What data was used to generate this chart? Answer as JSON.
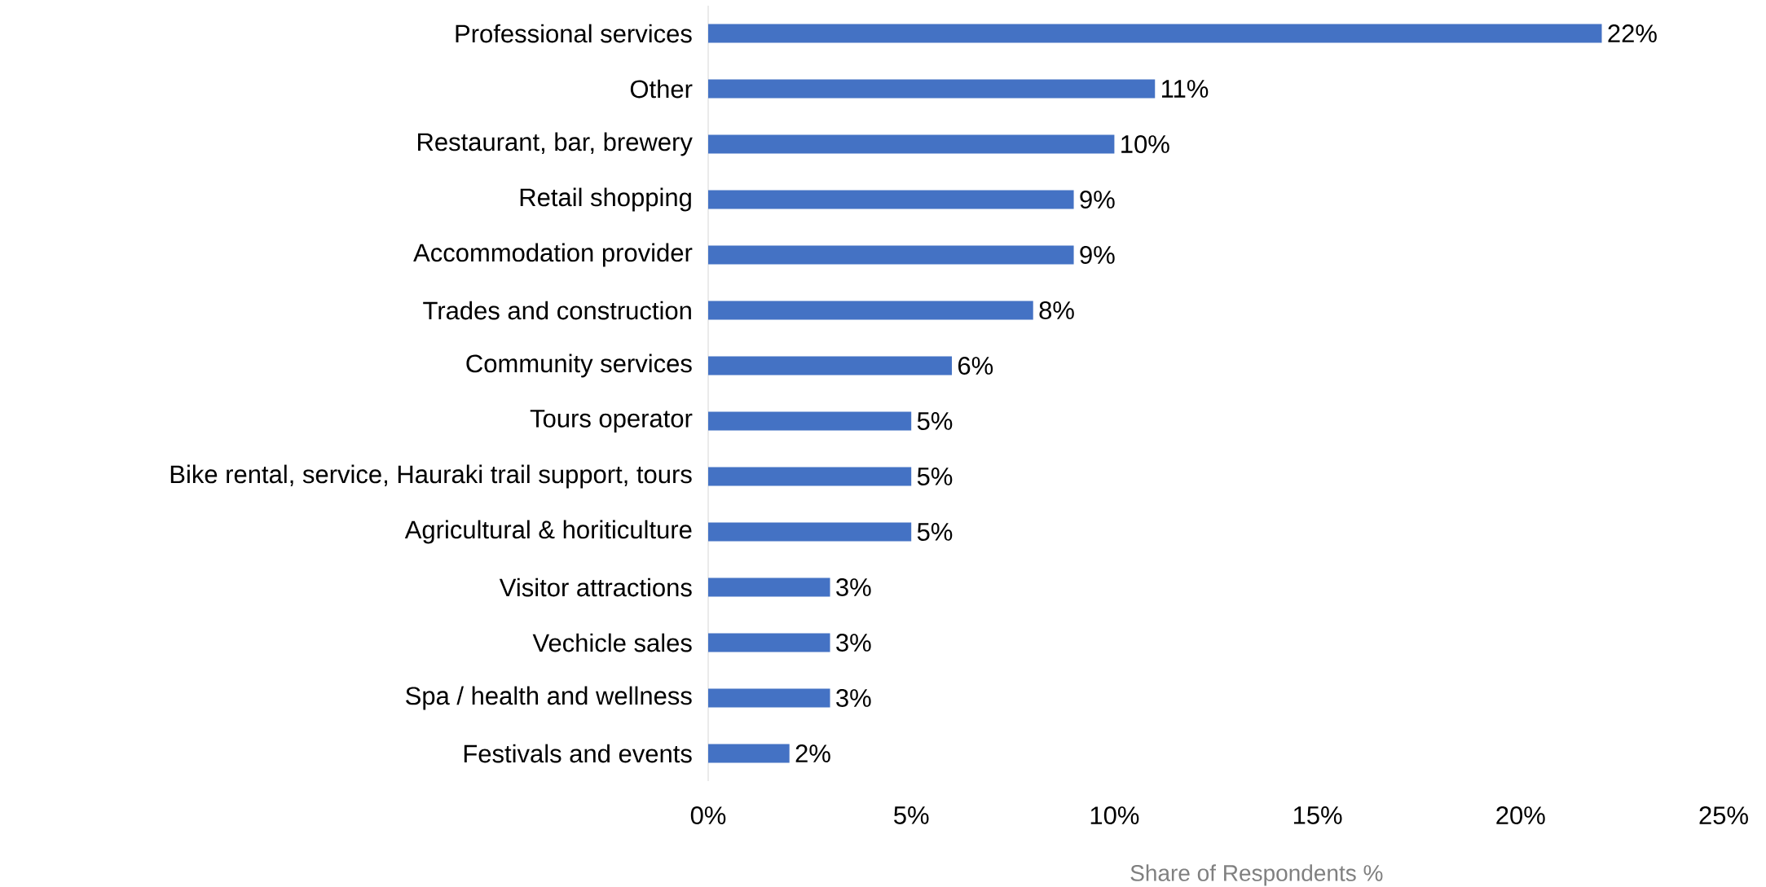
{
  "chart_data": {
    "type": "bar",
    "orientation": "horizontal",
    "xlabel": "Share of Respondents %",
    "categories": [
      "Professional services",
      "Other",
      "Restaurant, bar, brewery",
      "Retail shopping",
      "Accommodation provider",
      "Trades and construction",
      "Community services",
      "Tours operator",
      "Bike rental, service, Hauraki trail support, tours",
      "Agricultural & horiticulture",
      "Visitor attractions",
      "Vechicle sales",
      "Spa / health and wellness",
      "Festivals and events"
    ],
    "values": [
      22,
      11,
      10,
      9,
      9,
      8,
      6,
      5,
      5,
      5,
      3,
      3,
      3,
      2
    ],
    "value_labels": [
      "22%",
      "11%",
      "10%",
      "9%",
      "9%",
      "8%",
      "6%",
      "5%",
      "5%",
      "5%",
      "3%",
      "3%",
      "3%",
      "2%"
    ],
    "color": "#4472c4",
    "xlim": [
      0,
      25
    ],
    "xticks": [
      {
        "value": 0,
        "label": "0%"
      },
      {
        "value": 5,
        "label": "5%"
      },
      {
        "value": 10,
        "label": "10%"
      },
      {
        "value": 15,
        "label": "15%"
      },
      {
        "value": 20,
        "label": "20%"
      },
      {
        "value": 25,
        "label": "25%"
      }
    ]
  }
}
